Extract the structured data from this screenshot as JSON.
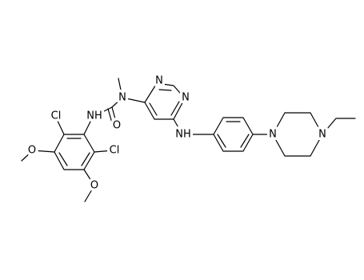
{
  "atoms": [
    {
      "label": "Cl"
    },
    {
      "label": "NH"
    },
    {
      "label": "O"
    },
    {
      "label": "N"
    },
    {
      "label": "N"
    },
    {
      "label": "N"
    },
    {
      "label": "NH"
    },
    {
      "label": "N"
    },
    {
      "label": "N"
    },
    {
      "label": "Cl"
    },
    {
      "label": "O"
    },
    {
      "label": "O"
    }
  ]
}
